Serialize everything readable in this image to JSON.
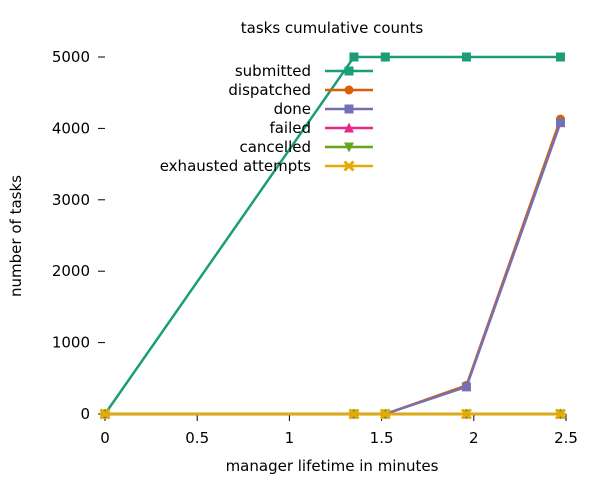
{
  "chart_data": {
    "type": "line",
    "title": "tasks cumulative counts",
    "xlabel": "manager lifetime in minutes",
    "ylabel": "number of tasks",
    "xlim": [
      0,
      2.5
    ],
    "ylim": [
      0,
      5000
    ],
    "xticks": [
      0,
      0.5,
      1,
      1.5,
      2,
      2.5
    ],
    "xtick_labels": [
      "0",
      "0.5",
      "1",
      "1.5",
      "2",
      "2.5"
    ],
    "yticks": [
      0,
      1000,
      2000,
      3000,
      4000,
      5000
    ],
    "ytick_labels": [
      "0",
      "1000",
      "2000",
      "3000",
      "4000",
      "5000"
    ],
    "grid": false,
    "legend_position": "top-center",
    "series": [
      {
        "name": "submitted",
        "color": "#1b9e77",
        "marker": "square",
        "x": [
          0,
          1.35,
          1.52,
          1.96,
          2.47
        ],
        "y": [
          0,
          5000,
          5000,
          5000,
          5000
        ]
      },
      {
        "name": "dispatched",
        "color": "#d95f02",
        "marker": "circle",
        "x": [
          0,
          1.35,
          1.52,
          1.96,
          2.47
        ],
        "y": [
          0,
          0,
          0,
          400,
          4130
        ]
      },
      {
        "name": "done",
        "color": "#7570b3",
        "marker": "square",
        "x": [
          0,
          1.35,
          1.52,
          1.96,
          2.47
        ],
        "y": [
          0,
          0,
          0,
          380,
          4080
        ]
      },
      {
        "name": "failed",
        "color": "#e7298a",
        "marker": "triangle",
        "x": [
          0,
          1.35,
          1.52,
          1.96,
          2.47
        ],
        "y": [
          0,
          0,
          0,
          0,
          0
        ]
      },
      {
        "name": "cancelled",
        "color": "#66a61e",
        "marker": "triangle-down",
        "x": [
          0,
          1.35,
          1.52,
          1.96,
          2.47
        ],
        "y": [
          0,
          0,
          0,
          0,
          0
        ]
      },
      {
        "name": "exhausted attempts",
        "color": "#e6ab02",
        "marker": "star",
        "x": [
          0,
          1.35,
          1.52,
          1.96,
          2.47
        ],
        "y": [
          0,
          0,
          0,
          0,
          0
        ]
      }
    ]
  }
}
